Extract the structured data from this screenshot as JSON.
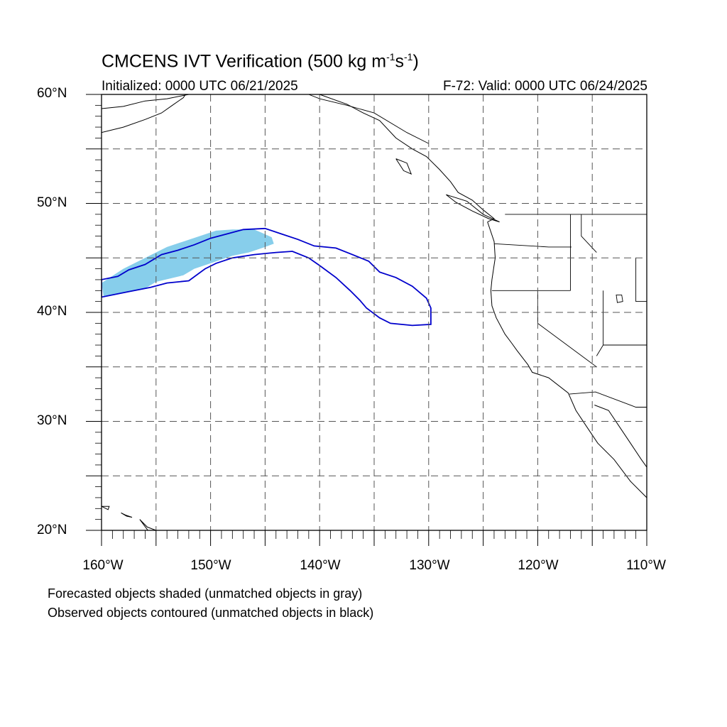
{
  "title": {
    "main": "CMCENS IVT Verification (500 kg m",
    "exp1": "-1",
    "mid": "s",
    "exp2": "-1",
    "end": ")"
  },
  "subtitle_left": "Initialized: 0000 UTC 06/21/2025",
  "subtitle_right": "F-72: Valid: 0000 UTC 06/24/2025",
  "lat_labels": [
    "60°N",
    "50°N",
    "40°N",
    "30°N",
    "20°N"
  ],
  "lon_labels": [
    "160°W",
    "150°W",
    "140°W",
    "130°W",
    "120°W",
    "110°W"
  ],
  "notes": [
    "Forecasted objects shaded (unmatched objects in gray)",
    "Observed objects contoured (unmatched objects in black)"
  ],
  "map": {
    "projection": "cylindrical-equidistant",
    "lon_range": [
      -160,
      -110
    ],
    "lat_range": [
      20,
      60
    ],
    "grid_interval_deg": 5,
    "grid_style": "dashed",
    "colors": {
      "forecast_fill": "#87CEEB",
      "observed_contour": "#0000CC",
      "coastline": "#000000"
    }
  },
  "forecast_object": {
    "type": "shaded",
    "polygon_lonlat": [
      [
        -159.8,
        41.4
      ],
      [
        -158,
        41.8
      ],
      [
        -156,
        42.2
      ],
      [
        -155,
        42.8
      ],
      [
        -152.5,
        43.4
      ],
      [
        -151.5,
        44.0
      ],
      [
        -150,
        44.5
      ],
      [
        -148,
        45.2
      ],
      [
        -146.5,
        45.5
      ],
      [
        -145,
        46.0
      ],
      [
        -144.2,
        46.3
      ],
      [
        -144.4,
        46.9
      ],
      [
        -145.3,
        47.3
      ],
      [
        -146,
        47.6
      ],
      [
        -148,
        47.6
      ],
      [
        -149.5,
        47.5
      ],
      [
        -152.5,
        46.5
      ],
      [
        -154,
        46.0
      ],
      [
        -156,
        45.0
      ],
      [
        -158,
        44.0
      ],
      [
        -160,
        42.7
      ]
    ]
  },
  "observed_object": {
    "type": "contour",
    "polygon_lonlat": [
      [
        -160,
        43.0
      ],
      [
        -158.5,
        43.3
      ],
      [
        -157.5,
        43.9
      ],
      [
        -156,
        44.4
      ],
      [
        -154.5,
        45.3
      ],
      [
        -153,
        45.7
      ],
      [
        -151.5,
        46.2
      ],
      [
        -150,
        46.8
      ],
      [
        -148.5,
        47.2
      ],
      [
        -147,
        47.6
      ],
      [
        -145,
        47.7
      ],
      [
        -143.5,
        47.2
      ],
      [
        -142,
        46.7
      ],
      [
        -140.5,
        46.1
      ],
      [
        -138.5,
        45.9
      ],
      [
        -137,
        45.3
      ],
      [
        -135.5,
        44.7
      ],
      [
        -134.5,
        43.7
      ],
      [
        -133,
        43.2
      ],
      [
        -131.5,
        42.4
      ],
      [
        -130.2,
        41.3
      ],
      [
        -129.8,
        40.4
      ],
      [
        -129.8,
        38.9
      ],
      [
        -131.5,
        38.8
      ],
      [
        -133.5,
        39.0
      ],
      [
        -134.5,
        39.5
      ],
      [
        -135.7,
        40.4
      ],
      [
        -136.3,
        41.1
      ],
      [
        -137.2,
        42.0
      ],
      [
        -138.5,
        43.2
      ],
      [
        -140,
        44.3
      ],
      [
        -141,
        45.0
      ],
      [
        -142.5,
        45.6
      ],
      [
        -144,
        45.5
      ],
      [
        -146,
        45.3
      ],
      [
        -148,
        45.0
      ],
      [
        -149.5,
        44.5
      ],
      [
        -150.5,
        44.0
      ],
      [
        -152,
        42.9
      ],
      [
        -154,
        42.7
      ],
      [
        -155.5,
        42.3
      ],
      [
        -157.5,
        41.9
      ],
      [
        -159,
        41.6
      ],
      [
        -160,
        41.4
      ]
    ]
  },
  "coastlines": [
    {
      "name": "alaska-gulf-coast",
      "lonlat": [
        [
          -160,
          58.7
        ],
        [
          -158,
          58.9
        ],
        [
          -156,
          59.4
        ],
        [
          -154,
          59.6
        ],
        [
          -152,
          60
        ],
        [
          -149,
          60
        ],
        [
          -147,
          60
        ]
      ]
    },
    {
      "name": "alaska-peninsula",
      "lonlat": [
        [
          -160,
          56.5
        ],
        [
          -158,
          57.0
        ],
        [
          -156,
          57.7
        ],
        [
          -154.5,
          58.3
        ],
        [
          -153.5,
          59.0
        ],
        [
          -152.5,
          59.7
        ],
        [
          -152.3,
          60
        ]
      ]
    },
    {
      "name": "southeast-alaska-bc-coast",
      "lonlat": [
        [
          -140,
          60
        ],
        [
          -137.5,
          59.1
        ],
        [
          -136,
          58.3
        ],
        [
          -134.5,
          57.6
        ],
        [
          -133,
          56.0
        ],
        [
          -131.5,
          55.0
        ],
        [
          -130.2,
          54.3
        ],
        [
          -129,
          53.1
        ],
        [
          -128,
          52.0
        ],
        [
          -127.3,
          51.0
        ],
        [
          -126,
          50.3
        ],
        [
          -125,
          49.4
        ],
        [
          -124,
          48.6
        ],
        [
          -124.6,
          48.3
        ]
      ]
    },
    {
      "name": "west-coast-us-mexico",
      "lonlat": [
        [
          -124.6,
          48.3
        ],
        [
          -124.0,
          46.5
        ],
        [
          -123.9,
          45.0
        ],
        [
          -124.2,
          43.0
        ],
        [
          -124.3,
          42.0
        ],
        [
          -124.2,
          40.6
        ],
        [
          -123.8,
          39.5
        ],
        [
          -123.0,
          38.0
        ],
        [
          -122.4,
          37.2
        ],
        [
          -121.9,
          36.5
        ],
        [
          -120.9,
          35.2
        ],
        [
          -120.5,
          34.5
        ],
        [
          -119.0,
          34.0
        ],
        [
          -117.2,
          32.6
        ],
        [
          -116.5,
          31.0
        ],
        [
          -115.5,
          29.5
        ],
        [
          -114.5,
          28.0
        ],
        [
          -113.0,
          26.5
        ],
        [
          -111.5,
          24.5
        ],
        [
          -110,
          23.0
        ]
      ]
    },
    {
      "name": "gulf-of-california-east",
      "lonlat": [
        [
          -114.8,
          31.5
        ],
        [
          -113.5,
          31.0
        ],
        [
          -112.5,
          29.5
        ],
        [
          -111.5,
          28.0
        ],
        [
          -110.5,
          26.5
        ],
        [
          -110,
          25.8
        ]
      ]
    },
    {
      "name": "vancouver-island",
      "lonlat": [
        [
          -128.4,
          50.8
        ],
        [
          -126.5,
          50.2
        ],
        [
          -125,
          49.0
        ],
        [
          -123.5,
          48.3
        ],
        [
          -124.5,
          48.6
        ],
        [
          -126,
          49.3
        ],
        [
          -127.5,
          50.1
        ],
        [
          -128.4,
          50.8
        ]
      ]
    },
    {
      "name": "haida-gwaii",
      "lonlat": [
        [
          -133,
          54.1
        ],
        [
          -132,
          53.7
        ],
        [
          -131.6,
          52.7
        ],
        [
          -132.3,
          53.0
        ],
        [
          -133,
          54.1
        ]
      ]
    },
    {
      "name": "hawaii-1",
      "lonlat": [
        [
          -160,
          22.2
        ],
        [
          -159.3,
          22.2
        ],
        [
          -159.4,
          21.9
        ],
        [
          -160,
          22.2
        ]
      ]
    },
    {
      "name": "hawaii-2",
      "lonlat": [
        [
          -158.2,
          21.6
        ],
        [
          -157.7,
          21.3
        ],
        [
          -157.2,
          21.2
        ],
        [
          -157.8,
          21.4
        ],
        [
          -158.2,
          21.6
        ]
      ]
    },
    {
      "name": "hawaii-3",
      "lonlat": [
        [
          -156.5,
          21.0
        ],
        [
          -155.8,
          20.3
        ],
        [
          -155.0,
          20.0
        ],
        [
          -155.6,
          19.8
        ],
        [
          -156.5,
          21.0
        ]
      ]
    }
  ],
  "borders": [
    {
      "name": "us-canada-49",
      "lonlat": [
        [
          -123,
          49
        ],
        [
          -110,
          49
        ]
      ]
    },
    {
      "name": "us-canada-alaska",
      "lonlat": [
        [
          -141,
          60
        ],
        [
          -140,
          59.6
        ],
        [
          -137.5,
          59.0
        ],
        [
          -135,
          58.3
        ],
        [
          -132,
          56.5
        ],
        [
          -130,
          55.5
        ]
      ]
    },
    {
      "name": "wa-or",
      "lonlat": [
        [
          -124,
          46.3
        ],
        [
          -119,
          46.0
        ],
        [
          -116.9,
          46.0
        ]
      ]
    },
    {
      "name": "or-ca-nv",
      "lonlat": [
        [
          -124.2,
          42
        ],
        [
          -117,
          42
        ]
      ]
    },
    {
      "name": "or-id-wa",
      "lonlat": [
        [
          -117,
          49
        ],
        [
          -117,
          42
        ]
      ]
    },
    {
      "name": "ca-nv",
      "lonlat": [
        [
          -120,
          42
        ],
        [
          -120,
          39
        ],
        [
          -114.6,
          35
        ]
      ]
    },
    {
      "name": "nv-az-ut",
      "lonlat": [
        [
          -114,
          42
        ],
        [
          -114,
          37
        ],
        [
          -114.6,
          36
        ]
      ]
    },
    {
      "name": "id-mt",
      "lonlat": [
        [
          -116,
          49
        ],
        [
          -116,
          47
        ],
        [
          -114.6,
          45.5
        ]
      ]
    },
    {
      "name": "us-mexico",
      "lonlat": [
        [
          -117.1,
          32.5
        ],
        [
          -114.7,
          32.7
        ],
        [
          -111,
          31.3
        ],
        [
          -110,
          31.3
        ]
      ]
    },
    {
      "name": "ut-wy",
      "lonlat": [
        [
          -111,
          45
        ],
        [
          -111,
          41
        ],
        [
          -110,
          41
        ]
      ]
    },
    {
      "name": "ut-co-az",
      "lonlat": [
        [
          -114,
          37
        ],
        [
          -110,
          37
        ]
      ]
    }
  ],
  "lakes": [
    {
      "name": "great-salt-lake",
      "lonlat": [
        [
          -112.8,
          41.6
        ],
        [
          -112.3,
          41.6
        ],
        [
          -112.2,
          41.0
        ],
        [
          -112.7,
          40.9
        ],
        [
          -112.8,
          41.6
        ]
      ]
    }
  ]
}
